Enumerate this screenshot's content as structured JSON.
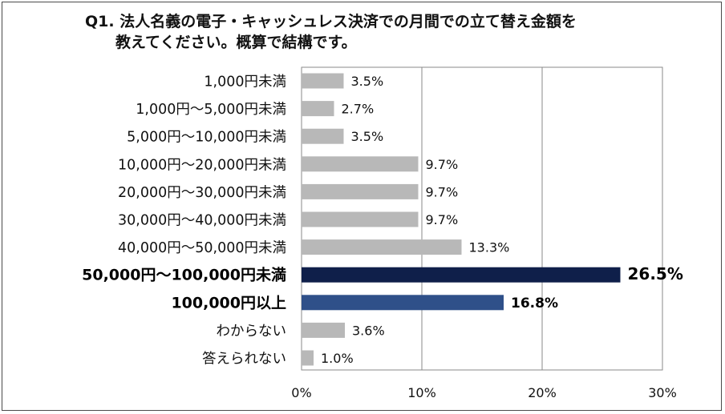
{
  "chart_data": {
    "type": "bar",
    "orientation": "horizontal",
    "title": "Q1. 法人名義の電子・キャッシュレス決済での月間での立て替え金額を\n　　教えてください。概算で結構です。",
    "categories": [
      "1,000円未満",
      "1,000円〜5,000円未満",
      "5,000円〜10,000円未満",
      "10,000円〜20,000円未満",
      "20,000円〜30,000円未満",
      "30,000円〜40,000円未満",
      "40,000円〜50,000円未満",
      "50,000円〜100,000円未満",
      "100,000円以上",
      "わからない",
      "答えられない"
    ],
    "values": [
      3.5,
      2.7,
      3.5,
      9.7,
      9.7,
      9.7,
      13.3,
      26.5,
      16.8,
      3.6,
      1.0
    ],
    "value_labels": [
      "3.5%",
      "2.7%",
      "3.5%",
      "9.7%",
      "9.7%",
      "9.7%",
      "13.3%",
      "26.5%",
      "16.8%",
      "3.6%",
      "1.0%"
    ],
    "highlighted": [
      7,
      8
    ],
    "xlim": [
      0,
      30
    ],
    "xticks": [
      "0%",
      "10%",
      "20%",
      "30%"
    ],
    "xlabel": "",
    "ylabel": "",
    "grid": "vertical",
    "colors": {
      "default": "#b8b8b8",
      "highlight_primary": "#0f1f4a",
      "highlight_secondary": "#2f5089",
      "gridline": "#8a8a8a"
    }
  }
}
